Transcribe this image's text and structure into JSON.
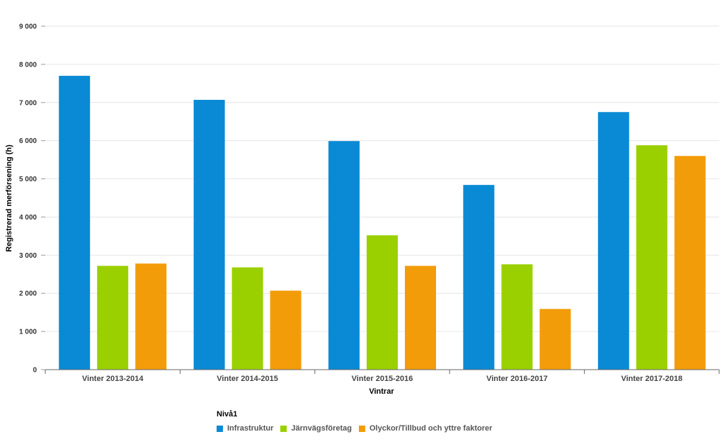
{
  "chart_data": {
    "type": "bar",
    "title": "",
    "xlabel": "Vintrar",
    "ylabel": "Registrerad merförsening (h)",
    "ylim": [
      0,
      9000
    ],
    "yticks": [
      {
        "value": 0,
        "label": "0"
      },
      {
        "value": 1000,
        "label": "1 000"
      },
      {
        "value": 2000,
        "label": "2 000"
      },
      {
        "value": 3000,
        "label": "3 000"
      },
      {
        "value": 4000,
        "label": "4 000"
      },
      {
        "value": 5000,
        "label": "5 000"
      },
      {
        "value": 6000,
        "label": "6 000"
      },
      {
        "value": 7000,
        "label": "7 000"
      },
      {
        "value": 8000,
        "label": "8 000"
      },
      {
        "value": 9000,
        "label": "9 000"
      }
    ],
    "grid": true,
    "categories": [
      "Vinter 2013-2014",
      "Vinter 2014-2015",
      "Vinter 2015-2016",
      "Vinter 2016-2017",
      "Vinter 2017-2018"
    ],
    "series": [
      {
        "name": "Infrastruktur",
        "color": "#0a8ad5",
        "values": [
          7700,
          7070,
          5990,
          4840,
          6750
        ]
      },
      {
        "name": "Järnvägsföretag",
        "color": "#9ad000",
        "values": [
          2720,
          2680,
          3520,
          2760,
          5880
        ]
      },
      {
        "name": "Olyckor/Tillbud och yttre faktorer",
        "color": "#f39c0a",
        "values": [
          2780,
          2070,
          2720,
          1590,
          5600
        ]
      }
    ],
    "legend": {
      "title": "Nivå1",
      "position": "bottom"
    }
  }
}
